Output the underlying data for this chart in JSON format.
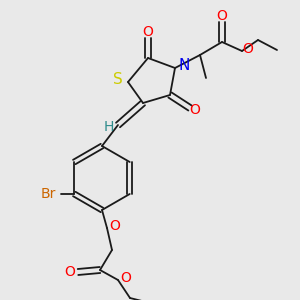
{
  "background_color": "#e9e9e9",
  "figsize": [
    3.0,
    3.0
  ],
  "dpi": 100,
  "bond_color": "#1a1a1a",
  "lw": 1.3,
  "colors": {
    "S": "#cccc00",
    "N": "#0000ee",
    "O": "#ff0000",
    "Br": "#cc6600",
    "H": "#2e8b8b",
    "C": "#1a1a1a"
  }
}
